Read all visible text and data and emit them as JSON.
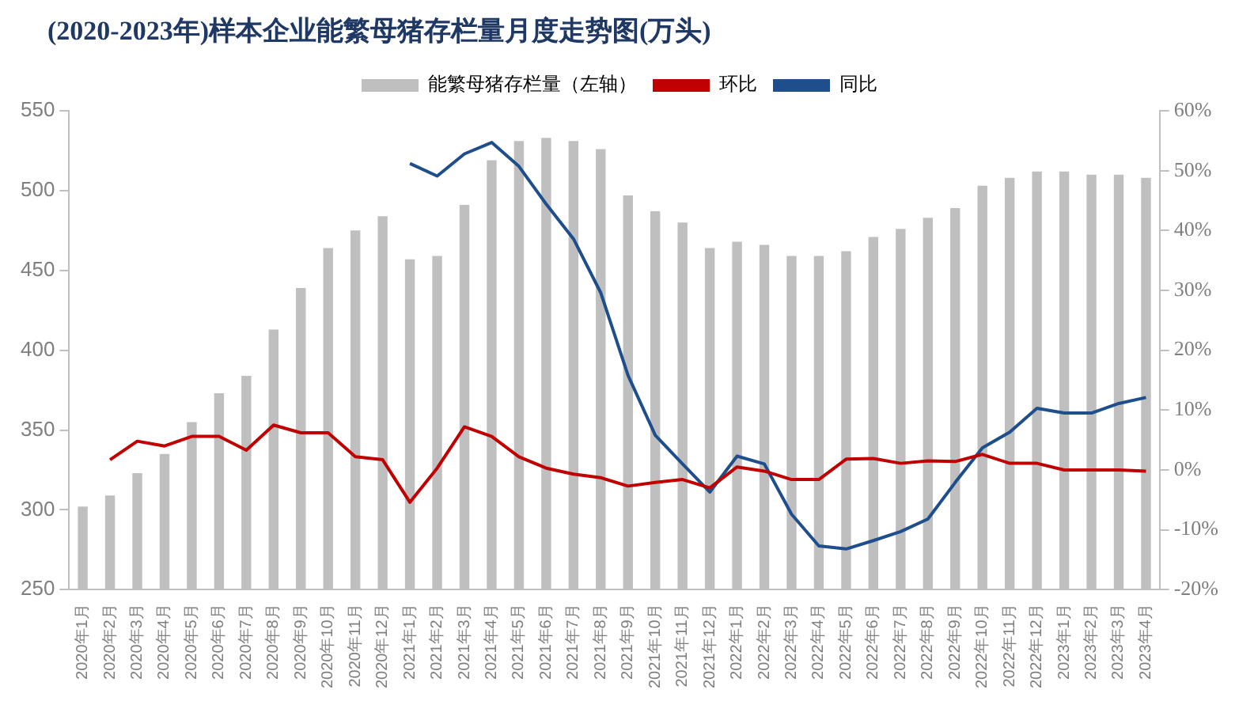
{
  "chart_data": {
    "type": "bar",
    "title": "(2020-2023年)样本企业能繁母猪存栏量月度走势图(万头)",
    "categories": [
      "2020年1月",
      "2020年2月",
      "2020年3月",
      "2020年4月",
      "2020年5月",
      "2020年6月",
      "2020年7月",
      "2020年8月",
      "2020年9月",
      "2020年10月",
      "2020年11月",
      "2020年12月",
      "2021年1月",
      "2021年2月",
      "2021年3月",
      "2021年4月",
      "2021年5月",
      "2021年6月",
      "2021年7月",
      "2021年8月",
      "2021年9月",
      "2021年10月",
      "2021年11月",
      "2021年12月",
      "2022年1月",
      "2022年2月",
      "2022年3月",
      "2022年4月",
      "2022年5月",
      "2022年6月",
      "2022年7月",
      "2022年8月",
      "2022年9月",
      "2022年10月",
      "2022年11月",
      "2022年12月",
      "2023年1月",
      "2023年2月",
      "2023年3月",
      "2023年4月"
    ],
    "series": [
      {
        "name": "能繁母猪存栏量（左轴）",
        "color": "#bfbfbf",
        "values": [
          302,
          309,
          323,
          335,
          355,
          373,
          384,
          413,
          439,
          464,
          475,
          484,
          457,
          459,
          491,
          519,
          531,
          533,
          531,
          526,
          497,
          487,
          480,
          464,
          468,
          466,
          459,
          459,
          462,
          471,
          476,
          483,
          489,
          503,
          508,
          512,
          512,
          510,
          510,
          508
        ]
      },
      {
        "name": "环比",
        "type": "line",
        "axis": "y2",
        "color": "#c00000",
        "values": [
          null,
          1.7,
          4.8,
          4.0,
          5.6,
          5.6,
          3.3,
          7.5,
          6.2,
          6.2,
          2.2,
          1.7,
          -5.4,
          0.3,
          7.2,
          5.6,
          2.2,
          0.3,
          -0.7,
          -1.3,
          -2.7,
          -2.1,
          -1.6,
          -3.0,
          0.5,
          -0.2,
          -1.6,
          -1.6,
          1.8,
          1.9,
          1.1,
          1.5,
          1.4,
          2.6,
          1.1,
          1.1,
          0,
          0,
          0,
          -0.2
        ]
      },
      {
        "name": "同比",
        "type": "line",
        "axis": "y2",
        "color": "#1f4e8c",
        "values": [
          null,
          null,
          null,
          null,
          null,
          null,
          null,
          null,
          null,
          null,
          null,
          null,
          51.2,
          49.1,
          52.8,
          54.7,
          50.7,
          44.4,
          38.6,
          29.6,
          15.8,
          5.8,
          1.0,
          -3.7,
          2.3,
          1.0,
          -7.4,
          -12.7,
          -13.2,
          -11.8,
          -10.3,
          -8.2,
          -2.1,
          3.7,
          6.3,
          10.3,
          9.5,
          9.5,
          11.1,
          12.1
        ]
      }
    ],
    "ylim": [
      250,
      550
    ],
    "yticks": [
      250,
      300,
      350,
      400,
      450,
      500,
      550
    ],
    "y2lim": [
      -20,
      60
    ],
    "y2ticks": [
      {
        "value": -20,
        "label": "-20%"
      },
      {
        "value": -10,
        "label": "-10%"
      },
      {
        "value": 0,
        "label": "0%"
      },
      {
        "value": 10,
        "label": "10%"
      },
      {
        "value": 20,
        "label": "20%"
      },
      {
        "value": 30,
        "label": "30%"
      },
      {
        "value": 40,
        "label": "40%"
      },
      {
        "value": 50,
        "label": "50%"
      },
      {
        "value": 60,
        "label": "60%"
      }
    ],
    "grid": false,
    "legend": "top",
    "marker": "none",
    "line_style": "solid"
  }
}
